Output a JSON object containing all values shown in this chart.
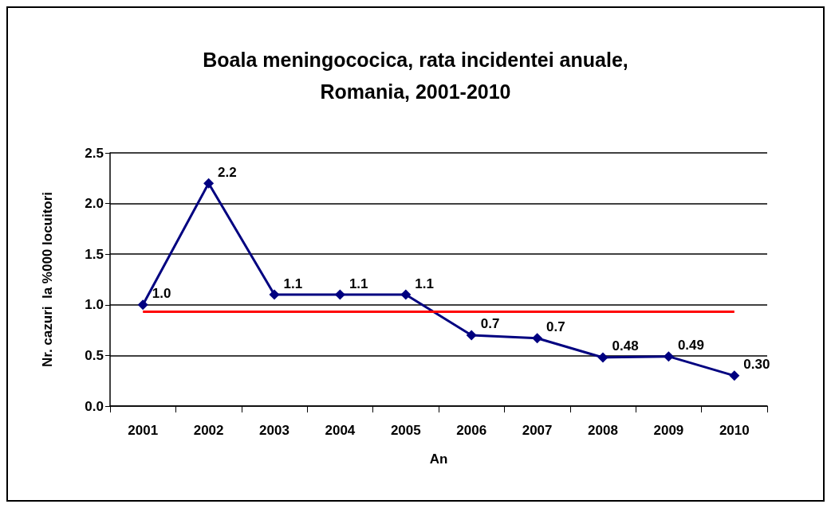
{
  "chart_data": {
    "type": "line",
    "title": "Boala meningococica, rata incidentei anuale,\nRomania, 2001-2010",
    "xlabel": "An",
    "ylabel": "Nr. cazuri  la %000 locuitori",
    "categories": [
      "2001",
      "2002",
      "2003",
      "2004",
      "2005",
      "2006",
      "2007",
      "2008",
      "2009",
      "2010"
    ],
    "series": [
      {
        "color": "#000080",
        "values": [
          1.0,
          2.2,
          1.1,
          1.1,
          1.1,
          0.7,
          0.67,
          0.48,
          0.49,
          0.3
        ],
        "value_labels": [
          "1.0",
          "2.2",
          "1.1",
          "1.1",
          "1.1",
          "0.7",
          "0.7",
          "0.48",
          "0.49",
          "0.30"
        ]
      }
    ],
    "ylim": [
      0,
      2.5
    ],
    "yticks": [
      {
        "value": 0,
        "label": "0.0"
      },
      {
        "value": 0.5,
        "label": "0.5"
      },
      {
        "value": 1,
        "label": "1.0"
      },
      {
        "value": 1.5,
        "label": "1.5"
      },
      {
        "value": 2,
        "label": "2.0"
      },
      {
        "value": 2.5,
        "label": "2.5"
      }
    ],
    "ref_lines": [
      {
        "axis": "y",
        "value": 0.93,
        "color": "#ff0000",
        "line_style": "solid"
      }
    ],
    "grid": "y",
    "marker": "diamond",
    "line_style": "solid"
  }
}
